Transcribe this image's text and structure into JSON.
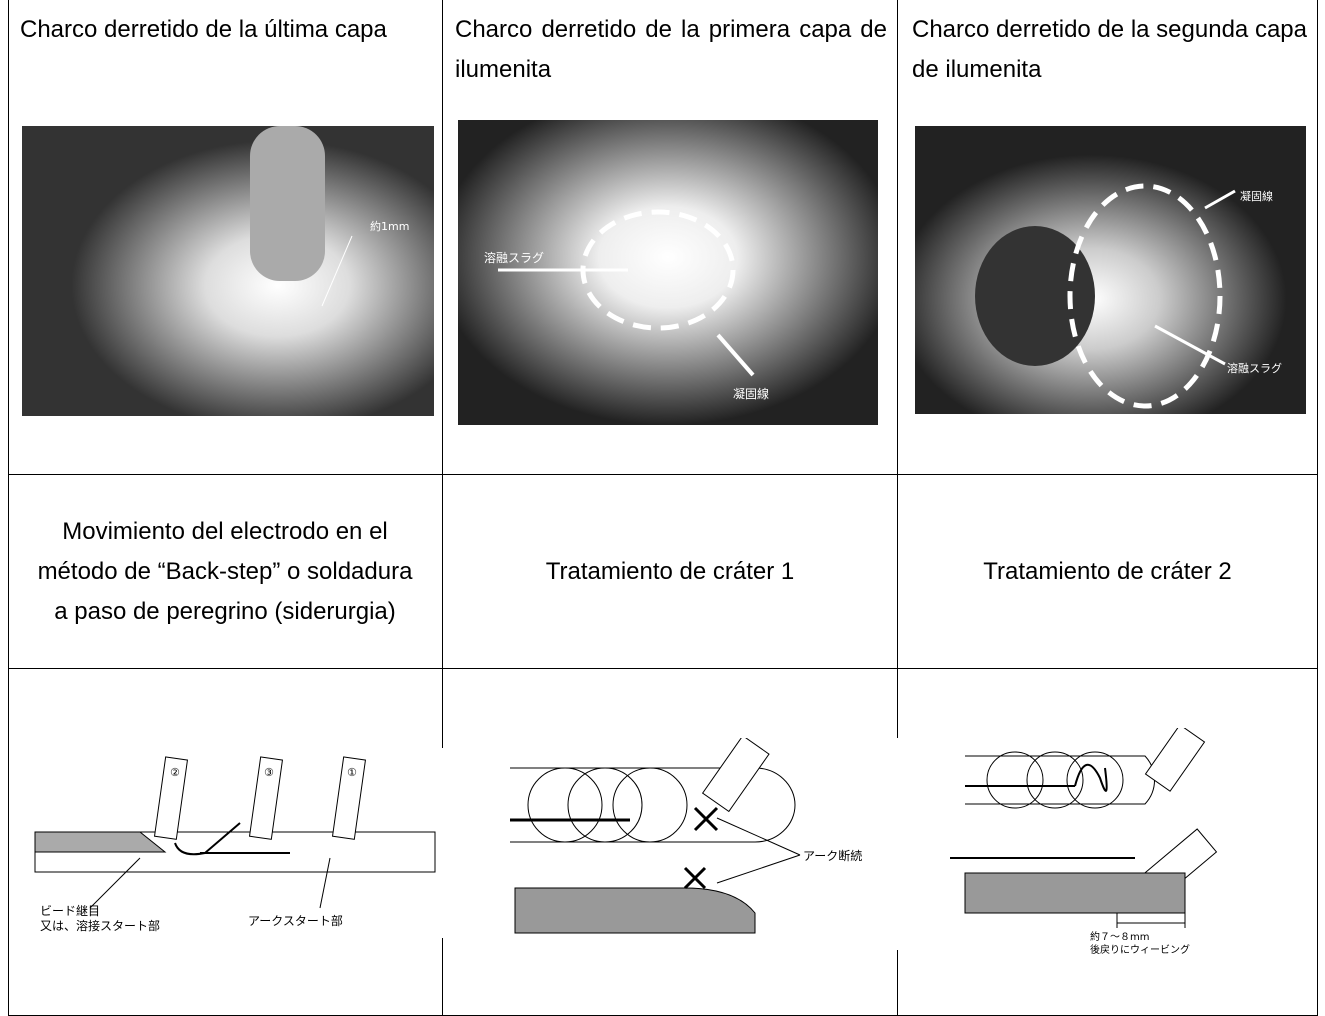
{
  "table": {
    "rows": [
      [
        {
          "caption": "Charco derretido de la última capa",
          "labels": [
            "約1mm"
          ]
        },
        {
          "caption": "Charco derretido de la primera capa de ilumenita",
          "labels": [
            "溶融スラグ",
            "凝固線"
          ]
        },
        {
          "caption": "Charco derretido de la segunda capa de ilumenita",
          "labels": [
            "凝固線",
            "溶融スラグ"
          ]
        }
      ],
      [
        "Movimiento del electrodo en el método de “Back-step” o soldadura a paso de peregrino (siderurgia)",
        "Tratamiento de cráter 1",
        "Tratamiento de cráter 2"
      ],
      [
        {
          "labels": [
            "②",
            "③",
            "①",
            "ビード継目",
            "又は、溶接スタート部",
            "アークスタート部"
          ]
        },
        {
          "labels": [
            "アーク断続"
          ]
        },
        {
          "labels": [
            "約７～８mm",
            "後戻りにウィービング"
          ]
        }
      ]
    ]
  }
}
